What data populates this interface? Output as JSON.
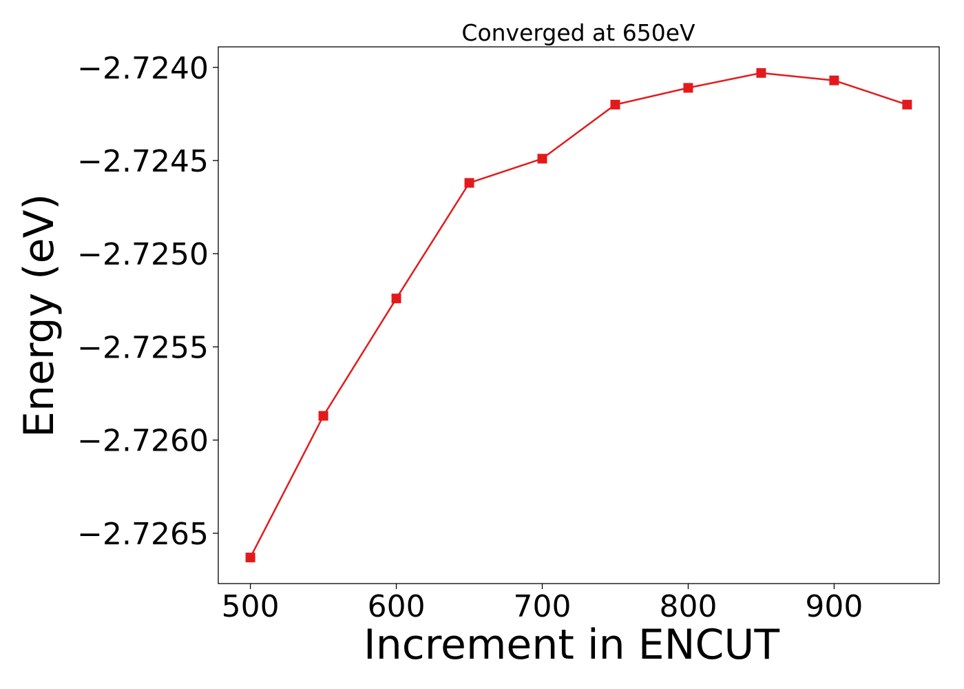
{
  "chart_data": {
    "type": "line",
    "title": "Converged at 650eV",
    "xlabel": "Increment in ENCUT",
    "ylabel": "Energy (eV)",
    "x": [
      500,
      550,
      600,
      650,
      700,
      750,
      800,
      850,
      900,
      950
    ],
    "series": [
      {
        "values": [
          -2.72663,
          -2.72587,
          -2.72524,
          -2.72462,
          -2.72449,
          -2.7242,
          -2.72411,
          -2.72403,
          -2.72407,
          -2.7242
        ],
        "color": "#e31a1c",
        "marker": "square"
      }
    ],
    "xlim": [
      478,
      972
    ],
    "ylim": [
      -2.72677,
      -2.72389
    ],
    "xticks": [
      500,
      600,
      700,
      800,
      900
    ],
    "xtick_labels": [
      "500",
      "600",
      "700",
      "800",
      "900"
    ],
    "yticks": [
      -2.7265,
      -2.726,
      -2.7255,
      -2.725,
      -2.7245,
      -2.724
    ],
    "ytick_labels": [
      "−2.7265",
      "−2.7260",
      "−2.7255",
      "−2.7250",
      "−2.7245",
      "−2.7240"
    ],
    "grid": false,
    "legend": "none"
  }
}
